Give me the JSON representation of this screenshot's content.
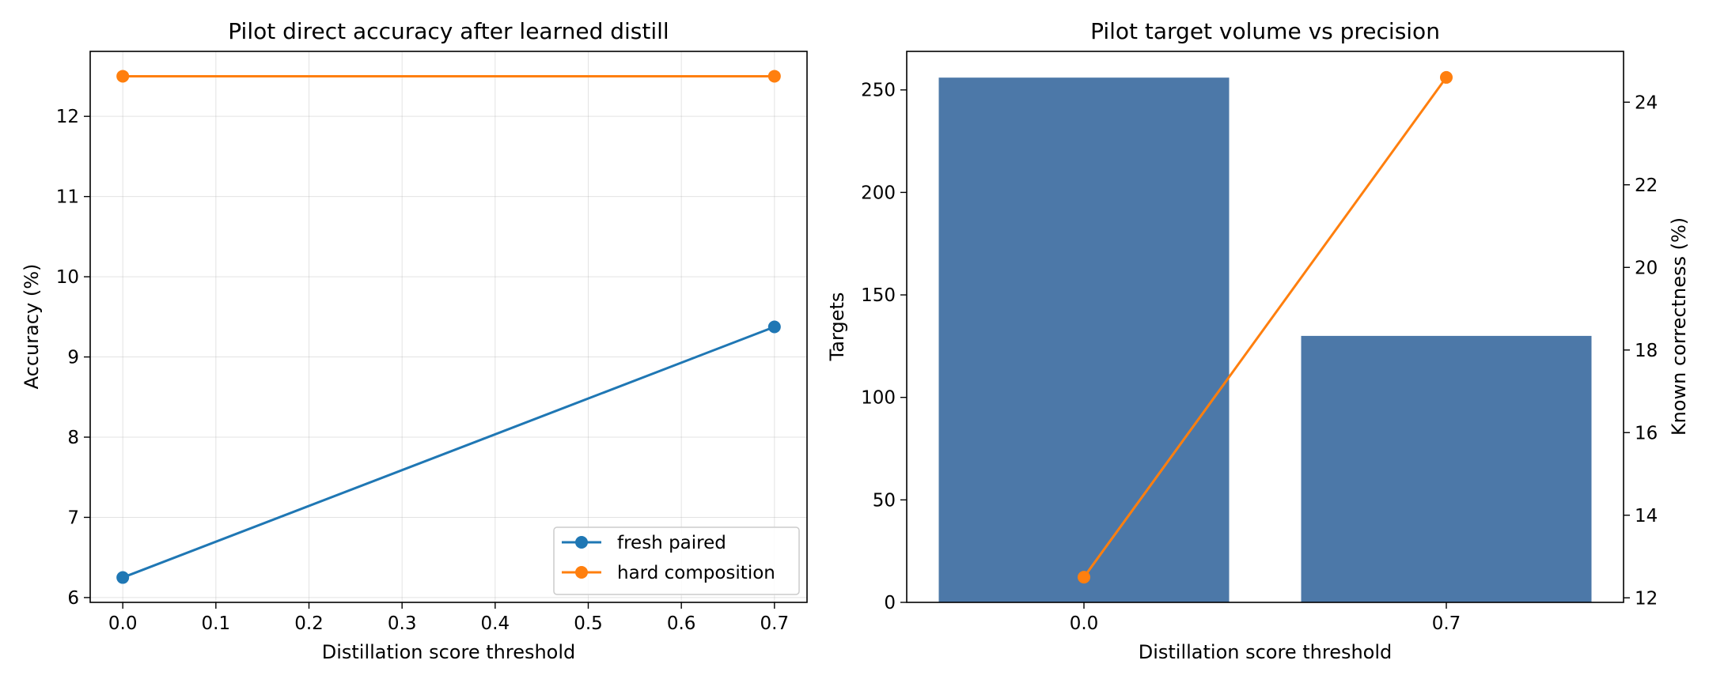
{
  "chart_data": [
    {
      "type": "line",
      "title": "Pilot direct accuracy after learned distill",
      "xlabel": "Distillation score threshold",
      "ylabel": "Accuracy (%)",
      "x": [
        0.0,
        0.7
      ],
      "xlim": [
        -0.035,
        0.735
      ],
      "ylim": [
        5.94,
        12.81
      ],
      "xticks": [
        "0.0",
        "0.1",
        "0.2",
        "0.3",
        "0.4",
        "0.5",
        "0.6",
        "0.7"
      ],
      "yticks": [
        "6",
        "7",
        "8",
        "9",
        "10",
        "11",
        "12"
      ],
      "grid": true,
      "legend_position": "lower right",
      "series": [
        {
          "name": "fresh paired",
          "color": "#1f77b4",
          "values": [
            6.25,
            9.375
          ]
        },
        {
          "name": "hard composition",
          "color": "#ff7f0e",
          "values": [
            12.5,
            12.5
          ]
        }
      ]
    },
    {
      "type": "bar",
      "title": "Pilot target volume vs precision",
      "xlabel": "Distillation score threshold",
      "ylabel": "Targets",
      "y2label": "Known correctness (%)",
      "categories": [
        "0.0",
        "0.7"
      ],
      "bar_color": "#4c78a8",
      "line_color": "#ff7f0e",
      "ylim": [
        0,
        268.8
      ],
      "y2lim": [
        11.89,
        25.23
      ],
      "yticks": [
        "0",
        "50",
        "100",
        "150",
        "200",
        "250"
      ],
      "y2ticks": [
        "12",
        "14",
        "16",
        "18",
        "20",
        "22",
        "24"
      ],
      "series": [
        {
          "values": [
            256,
            130
          ]
        },
        {
          "axis": "right",
          "values": [
            12.5,
            24.6
          ]
        }
      ]
    }
  ]
}
